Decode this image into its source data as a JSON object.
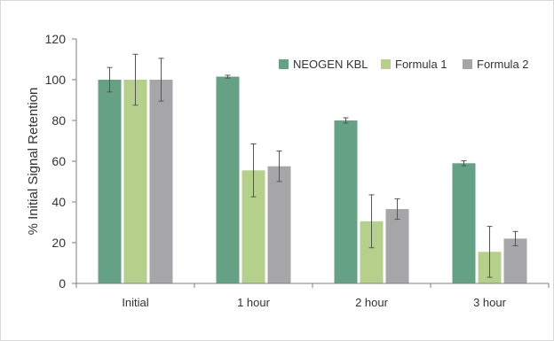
{
  "chart_data": {
    "type": "bar",
    "title": "",
    "xlabel": "",
    "ylabel": "% Initial Signal Retention",
    "ylim": [
      0,
      120
    ],
    "yticks": [
      0,
      20,
      40,
      60,
      80,
      100,
      120
    ],
    "grid": false,
    "legend_position": "top-right",
    "categories": [
      "Initial",
      "1 hour",
      "2 hour",
      "3 hour"
    ],
    "series": [
      {
        "name": "NEOGEN KBL",
        "color": "#65a285",
        "values": [
          100,
          101.5,
          80,
          59
        ],
        "errors": [
          6,
          0.7,
          1.3,
          1.2
        ]
      },
      {
        "name": "Formula 1",
        "color": "#b5d08b",
        "values": [
          100,
          55.5,
          30.5,
          15.5
        ],
        "errors": [
          12.5,
          13,
          13,
          12.5
        ]
      },
      {
        "name": "Formula 2",
        "color": "#a6a6a8",
        "values": [
          100,
          57.5,
          36.5,
          22
        ],
        "errors": [
          10.5,
          7.5,
          5,
          3.5
        ]
      }
    ]
  }
}
